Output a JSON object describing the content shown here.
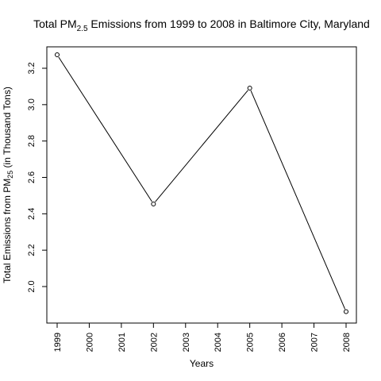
{
  "chart_data": {
    "type": "line",
    "title": {
      "pre": "Total PM",
      "sub": "2.5",
      "post": " Emissions from 1999 to 2008 in Baltimore City, Maryland"
    },
    "xlabel": "Years",
    "ylabel": {
      "pre": "Total Emissions from   PM",
      "sub": "25",
      "post": " (in Thousand Tons)"
    },
    "x_ticks": [
      "1999",
      "2000",
      "2001",
      "2002",
      "2003",
      "2004",
      "2005",
      "2006",
      "2007",
      "2008"
    ],
    "y_ticks": [
      "2.0",
      "2.2",
      "2.4",
      "2.6",
      "2.8",
      "3.0",
      "3.2"
    ],
    "xlim": [
      1999,
      2008
    ],
    "ylim": [
      2.0,
      3.2
    ],
    "series": [
      {
        "x": [
          1999,
          2002,
          2005,
          2008
        ],
        "y": [
          3.274,
          2.454,
          3.091,
          1.862
        ]
      }
    ],
    "grid": false,
    "legend": "none"
  }
}
